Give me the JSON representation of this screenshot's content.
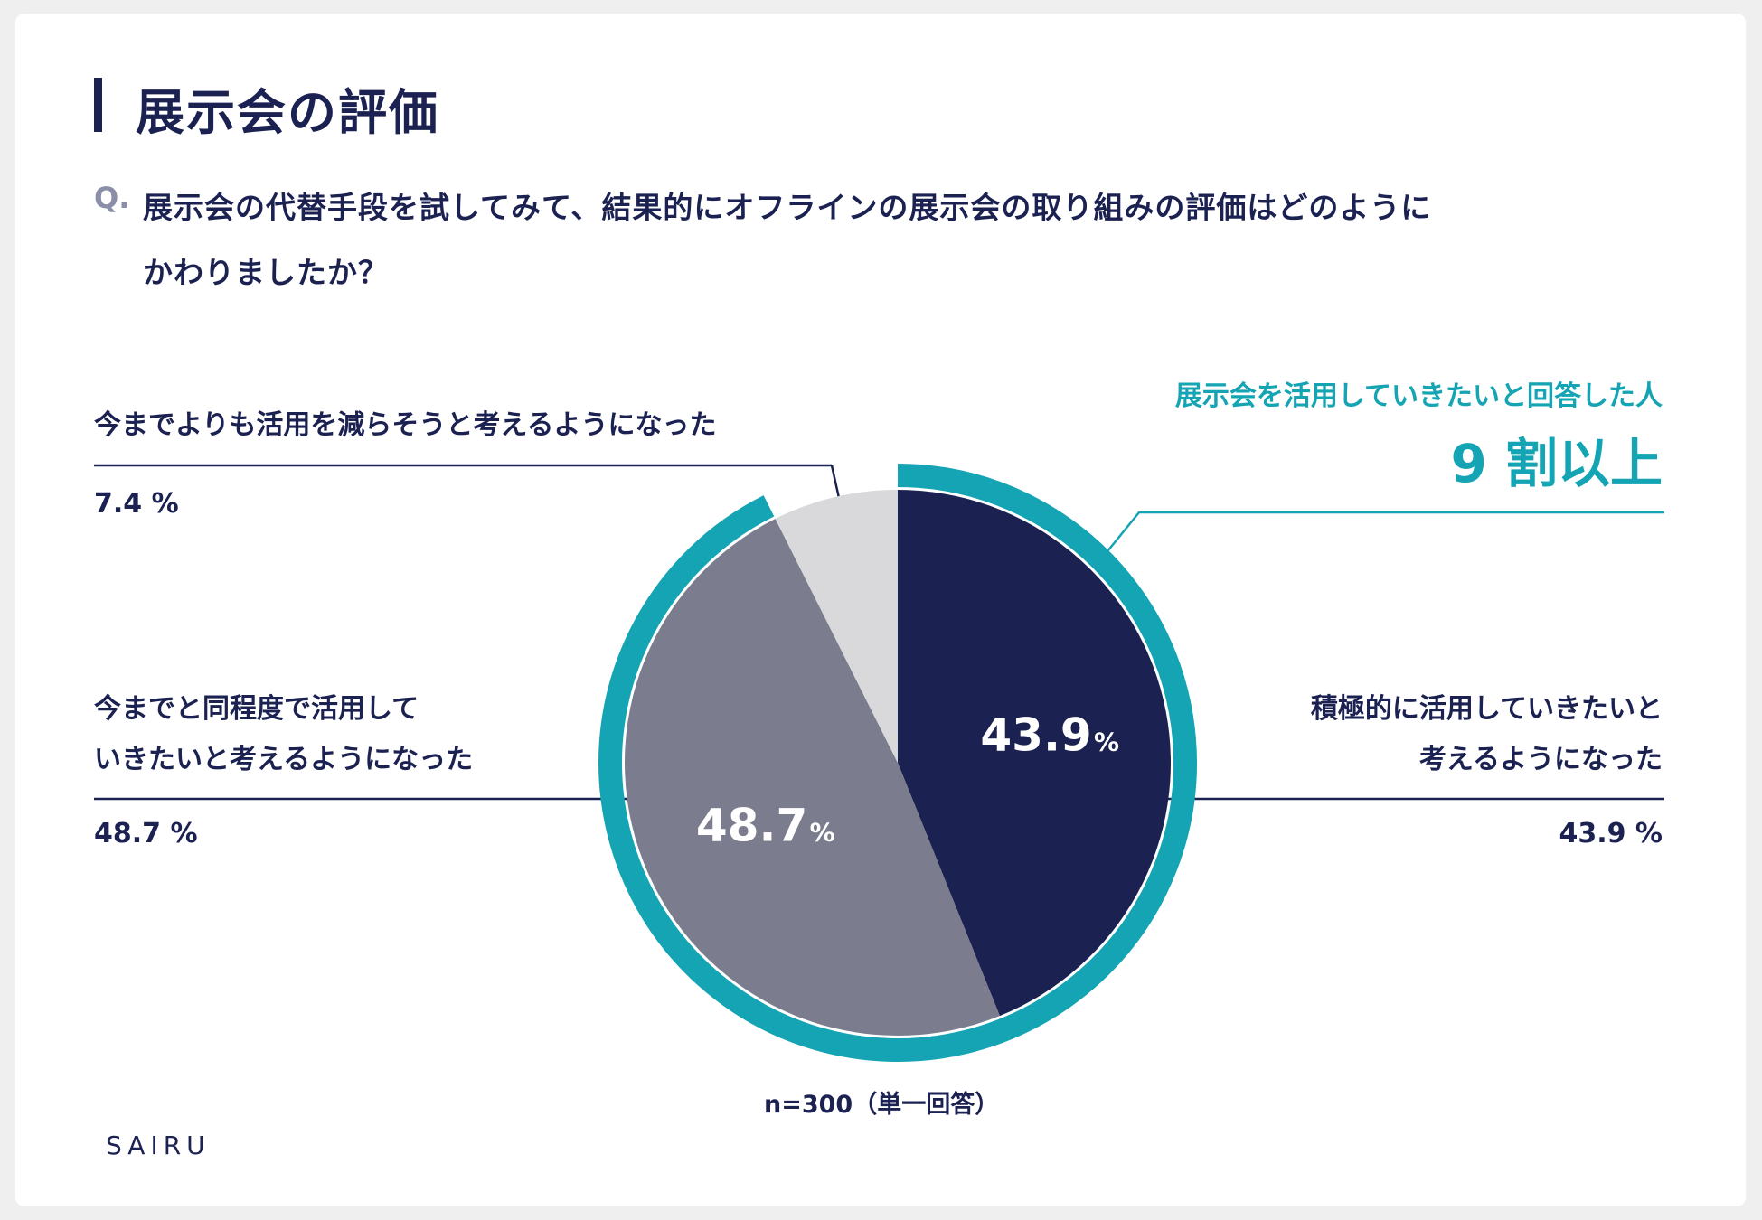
{
  "title": "展示会の評価",
  "question_mark": "Q.",
  "question_line1": "展示会の代替手段を試してみて、結果的にオフラインの展示会の取り組みの評価はどのように",
  "question_line2": "かわりましたか？",
  "highlight": {
    "label": "展示会を活用していきたいと回答した人",
    "value": "9 割以上"
  },
  "sample_note": "n=300（単一回答）",
  "logo": "SAIRU",
  "chart_data": {
    "type": "pie",
    "start": "12 o'clock, clockwise",
    "slices": [
      {
        "label_line1": "積極的に活用していきたいと",
        "label_line2": "考えるようになった",
        "value": 43.9,
        "value_text": "43.9 %",
        "inner_value": "43.9",
        "color": "#1b2150"
      },
      {
        "label_line1": "今までと同程度で活用して",
        "label_line2": "いきたいと考えるようになった",
        "value": 48.7,
        "value_text": "48.7 %",
        "inner_value": "48.7",
        "color": "#7b7d8f"
      },
      {
        "label_line1": "今までよりも活用を減らそうと考えるようになった",
        "label_line2": "",
        "value": 7.4,
        "value_text": "7.4 %",
        "inner_value": "",
        "color": "#d9d9db"
      }
    ],
    "unit": "%",
    "highlight_ring": {
      "covers": "first two slices",
      "color": "#14a4b3"
    }
  }
}
